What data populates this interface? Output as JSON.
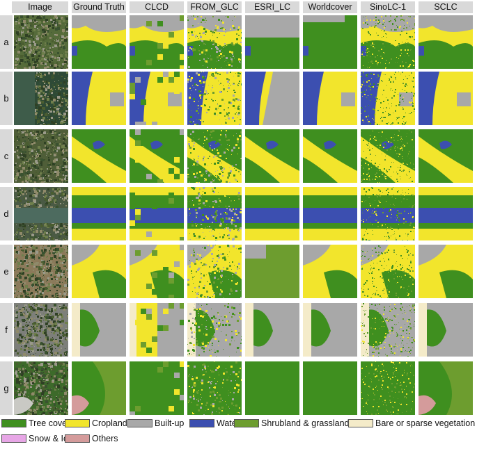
{
  "columns": [
    "Image",
    "Ground Truth",
    "CLCD",
    "FROM_GLC",
    "ESRI_LC",
    "Worldcover",
    "SinoLC-1",
    "SCLC"
  ],
  "rows": [
    "a",
    "b",
    "c",
    "d",
    "e",
    "f",
    "g"
  ],
  "legend": [
    {
      "label": "Tree cover",
      "color": "#3f8f1f"
    },
    {
      "label": "Cropland",
      "color": "#f2e52c"
    },
    {
      "label": "Built-up",
      "color": "#a8a8a8"
    },
    {
      "label": "Water",
      "color": "#3c4fb0"
    },
    {
      "label": "Shrubland & grassland",
      "color": "#6d9d2f"
    },
    {
      "label": "Bare or sparse vegetation",
      "color": "#f4ebc9"
    },
    {
      "label": "Snow & Ice",
      "color": "#e7a6e6"
    },
    {
      "label": "Others",
      "color": "#d49b9b"
    }
  ],
  "photo_colors": [
    "#556b3a",
    "#2e4a36",
    "#4f5e38",
    "#4a5a44",
    "#8b7a5a",
    "#7d7f7a",
    "#3d6a2a"
  ]
}
